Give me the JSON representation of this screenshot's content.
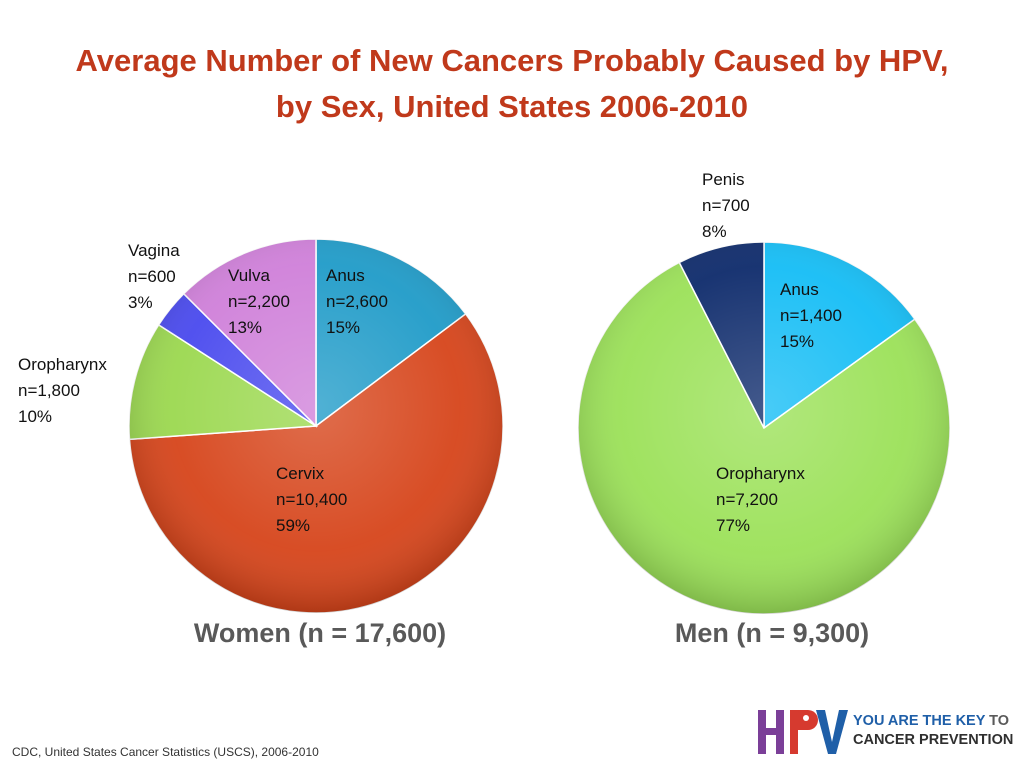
{
  "title": {
    "line1": "Average Number of New Cancers Probably Caused by HPV,",
    "line2": "by Sex, United States 2006-2010"
  },
  "chart_data": [
    {
      "type": "pie",
      "title": "Women (n = 17,600)",
      "slices": [
        {
          "name": "Anus",
          "count_label": "n=2,600",
          "percent_label": "15%",
          "value": 2600,
          "color": "#1f9bc8"
        },
        {
          "name": "Cervix",
          "count_label": "n=10,400",
          "percent_label": "59%",
          "value": 10400,
          "color": "#d6441a"
        },
        {
          "name": "Oropharynx",
          "count_label": "n=1,800",
          "percent_label": "10%",
          "value": 1800,
          "color": "#9bd84f"
        },
        {
          "name": "Vagina",
          "count_label": "n=600",
          "percent_label": "3%",
          "value": 600,
          "color": "#4949ee"
        },
        {
          "name": "Vulva",
          "count_label": "n=2,200",
          "percent_label": "13%",
          "value": 2200,
          "color": "#cf7fd9"
        }
      ]
    },
    {
      "type": "pie",
      "title": "Men (n = 9,300)",
      "slices": [
        {
          "name": "Anus",
          "count_label": "n=1,400",
          "percent_label": "15%",
          "value": 1400,
          "color": "#14bdf5"
        },
        {
          "name": "Oropharynx",
          "count_label": "n=7,200",
          "percent_label": "77%",
          "value": 7200,
          "color": "#9be158"
        },
        {
          "name": "Penis",
          "count_label": "n=700",
          "percent_label": "8%",
          "value": 700,
          "color": "#0d2a6b"
        }
      ]
    }
  ],
  "source": "CDC, United States Cancer Statistics (USCS), 2006-2010",
  "logo": {
    "letters": "HPV",
    "line1_a": "YOU ARE THE KEY",
    "line1_b": "TO",
    "line2": "CANCER PREVENTION"
  }
}
